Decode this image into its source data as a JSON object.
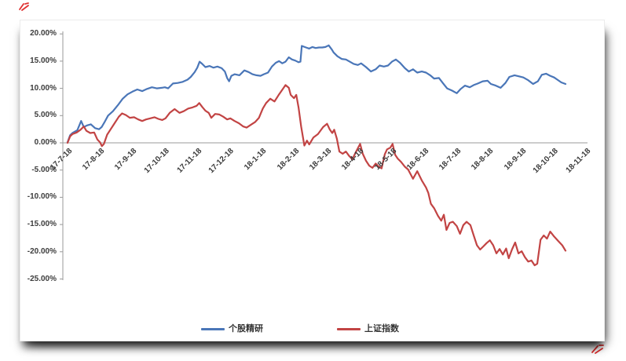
{
  "chart_data": {
    "type": "line",
    "title": "",
    "x_unit": "months since 17-7-18 (date format yy-m-dd)",
    "y_unit": "cumulative return %",
    "ylim": [
      -25,
      20
    ],
    "grid": false,
    "legend_position": "bottom",
    "x_axis": {
      "ticks": [
        "17-7-18",
        "17-8-18",
        "17-9-18",
        "17-10-18",
        "17-11-18",
        "17-12-18",
        "18-1-18",
        "18-2-18",
        "18-3-18",
        "18-4-18",
        "18-5-18",
        "18-6-18",
        "18-7-18",
        "18-8-18",
        "18-9-18",
        "18-10-18",
        "18-11-18"
      ],
      "labels_rotated": true
    },
    "y_axis": {
      "ticks": [
        "20.00%",
        "15.00%",
        "10.00%",
        "5.00%",
        "0.00%",
        "-5.00%",
        "-10.00%",
        "-15.00%",
        "-20.00%",
        "-25.00%"
      ],
      "max": 20,
      "min": -25,
      "step": 5
    },
    "legend": [
      {
        "label": "个股精研",
        "color": "#4a76b8"
      },
      {
        "label": "上证指数",
        "color": "#c24444"
      }
    ],
    "axis_color": "#9a9a9a",
    "series": [
      {
        "name": "个股精研",
        "color": "#4a76b8",
        "points": [
          [
            0,
            0.1
          ],
          [
            0.08,
            1.4
          ],
          [
            0.15,
            1.8
          ],
          [
            0.3,
            2.3
          ],
          [
            0.42,
            4
          ],
          [
            0.5,
            2.9
          ],
          [
            0.6,
            3.2
          ],
          [
            0.72,
            3.4
          ],
          [
            0.85,
            2.7
          ],
          [
            0.97,
            2.5
          ],
          [
            1.05,
            2.9
          ],
          [
            1.15,
            3.9
          ],
          [
            1.25,
            5
          ],
          [
            1.4,
            5.8
          ],
          [
            1.55,
            6.9
          ],
          [
            1.7,
            8.1
          ],
          [
            1.85,
            8.9
          ],
          [
            2,
            9.4
          ],
          [
            2.15,
            9.8
          ],
          [
            2.3,
            9.5
          ],
          [
            2.45,
            9.9
          ],
          [
            2.6,
            10.2
          ],
          [
            2.75,
            10
          ],
          [
            2.9,
            10.1
          ],
          [
            3,
            10.2
          ],
          [
            3.1,
            10
          ],
          [
            3.25,
            10.9
          ],
          [
            3.4,
            11
          ],
          [
            3.55,
            11.2
          ],
          [
            3.7,
            11.6
          ],
          [
            3.8,
            12.1
          ],
          [
            3.92,
            13
          ],
          [
            4,
            13.8
          ],
          [
            4.07,
            14.9
          ],
          [
            4.15,
            14.5
          ],
          [
            4.25,
            13.9
          ],
          [
            4.38,
            14.1
          ],
          [
            4.5,
            13.8
          ],
          [
            4.62,
            14
          ],
          [
            4.75,
            13.7
          ],
          [
            4.85,
            13.1
          ],
          [
            4.92,
            11.9
          ],
          [
            4.98,
            11.3
          ],
          [
            5.05,
            12.3
          ],
          [
            5.15,
            12.6
          ],
          [
            5.3,
            12.4
          ],
          [
            5.45,
            13.3
          ],
          [
            5.58,
            13
          ],
          [
            5.7,
            12.6
          ],
          [
            5.82,
            12.4
          ],
          [
            5.95,
            12.3
          ],
          [
            6.05,
            12.6
          ],
          [
            6.18,
            12.9
          ],
          [
            6.3,
            14
          ],
          [
            6.42,
            14.7
          ],
          [
            6.52,
            15
          ],
          [
            6.62,
            14.6
          ],
          [
            6.72,
            14.9
          ],
          [
            6.82,
            15.7
          ],
          [
            6.92,
            15.3
          ],
          [
            7.02,
            15.1
          ],
          [
            7.12,
            14.8
          ],
          [
            7.18,
            14.9
          ],
          [
            7.22,
            17.8
          ],
          [
            7.35,
            17.5
          ],
          [
            7.45,
            17.3
          ],
          [
            7.55,
            17.6
          ],
          [
            7.65,
            17.4
          ],
          [
            7.75,
            17.5
          ],
          [
            7.85,
            17.5
          ],
          [
            7.95,
            17.6
          ],
          [
            8.05,
            17.9
          ],
          [
            8.15,
            17.1
          ],
          [
            8.2,
            16.6
          ],
          [
            8.32,
            15.9
          ],
          [
            8.45,
            15.4
          ],
          [
            8.58,
            15.3
          ],
          [
            8.7,
            14.9
          ],
          [
            8.82,
            14.5
          ],
          [
            8.95,
            14.3
          ],
          [
            9.05,
            14.6
          ],
          [
            9.2,
            13.9
          ],
          [
            9.35,
            13.1
          ],
          [
            9.5,
            13.5
          ],
          [
            9.62,
            14.2
          ],
          [
            9.75,
            14
          ],
          [
            9.88,
            14.2
          ],
          [
            10,
            14.9
          ],
          [
            10.12,
            15.3
          ],
          [
            10.25,
            14.7
          ],
          [
            10.4,
            13.7
          ],
          [
            10.52,
            13.1
          ],
          [
            10.65,
            13.5
          ],
          [
            10.78,
            12.9
          ],
          [
            10.92,
            13.1
          ],
          [
            11.05,
            12.9
          ],
          [
            11.18,
            12.4
          ],
          [
            11.3,
            11.8
          ],
          [
            11.45,
            11.9
          ],
          [
            11.58,
            10.9
          ],
          [
            11.7,
            10
          ],
          [
            11.85,
            9.6
          ],
          [
            12,
            9.1
          ],
          [
            12.12,
            9.9
          ],
          [
            12.25,
            10.5
          ],
          [
            12.4,
            10.2
          ],
          [
            12.52,
            10.6
          ],
          [
            12.65,
            10.9
          ],
          [
            12.8,
            11.3
          ],
          [
            12.95,
            11.4
          ],
          [
            13.05,
            10.8
          ],
          [
            13.2,
            10.5
          ],
          [
            13.35,
            10.1
          ],
          [
            13.5,
            11
          ],
          [
            13.62,
            12.1
          ],
          [
            13.78,
            12.4
          ],
          [
            13.92,
            12.2
          ],
          [
            14.05,
            12
          ],
          [
            14.2,
            11.5
          ],
          [
            14.35,
            10.8
          ],
          [
            14.5,
            11.3
          ],
          [
            14.62,
            12.5
          ],
          [
            14.75,
            12.7
          ],
          [
            14.88,
            12.3
          ],
          [
            15,
            12
          ],
          [
            15.1,
            11.6
          ],
          [
            15.22,
            11.1
          ],
          [
            15.35,
            10.8
          ]
        ]
      },
      {
        "name": "上证指数",
        "color": "#c24444",
        "points": [
          [
            0,
            0
          ],
          [
            0.08,
            1.2
          ],
          [
            0.15,
            1.6
          ],
          [
            0.28,
            1.9
          ],
          [
            0.4,
            2.4
          ],
          [
            0.5,
            3
          ],
          [
            0.58,
            2.2
          ],
          [
            0.7,
            1.8
          ],
          [
            0.82,
            1.9
          ],
          [
            0.92,
            0.6
          ],
          [
            1,
            0.1
          ],
          [
            1.06,
            -0.6
          ],
          [
            1.12,
            -0.2
          ],
          [
            1.22,
            1.5
          ],
          [
            1.32,
            2.4
          ],
          [
            1.45,
            3.6
          ],
          [
            1.58,
            4.8
          ],
          [
            1.68,
            5.4
          ],
          [
            1.8,
            5.1
          ],
          [
            1.92,
            4.6
          ],
          [
            2.05,
            4.7
          ],
          [
            2.18,
            4.3
          ],
          [
            2.3,
            4
          ],
          [
            2.42,
            4.3
          ],
          [
            2.55,
            4.5
          ],
          [
            2.68,
            4.7
          ],
          [
            2.8,
            4.4
          ],
          [
            2.92,
            4.2
          ],
          [
            3.02,
            4.5
          ],
          [
            3.15,
            5.5
          ],
          [
            3.3,
            6.2
          ],
          [
            3.45,
            5.5
          ],
          [
            3.58,
            5.8
          ],
          [
            3.72,
            6.3
          ],
          [
            3.85,
            6.5
          ],
          [
            3.98,
            6.8
          ],
          [
            4.06,
            7.3
          ],
          [
            4.15,
            6.6
          ],
          [
            4.25,
            5.9
          ],
          [
            4.35,
            5.5
          ],
          [
            4.43,
            4.6
          ],
          [
            4.55,
            5.3
          ],
          [
            4.68,
            5.2
          ],
          [
            4.8,
            4.8
          ],
          [
            4.92,
            4.3
          ],
          [
            5.02,
            4.5
          ],
          [
            5.15,
            4
          ],
          [
            5.28,
            3.6
          ],
          [
            5.42,
            3
          ],
          [
            5.52,
            2.8
          ],
          [
            5.65,
            3.3
          ],
          [
            5.78,
            3.8
          ],
          [
            5.9,
            4.6
          ],
          [
            6.02,
            6.3
          ],
          [
            6.12,
            7.3
          ],
          [
            6.25,
            8.1
          ],
          [
            6.38,
            7.6
          ],
          [
            6.52,
            8.9
          ],
          [
            6.65,
            10
          ],
          [
            6.72,
            10.6
          ],
          [
            6.82,
            10.1
          ],
          [
            6.88,
            8.8
          ],
          [
            6.98,
            8.2
          ],
          [
            7.05,
            8.8
          ],
          [
            7.12,
            6.5
          ],
          [
            7.2,
            3
          ],
          [
            7.3,
            -0.5
          ],
          [
            7.38,
            0.4
          ],
          [
            7.45,
            -0.3
          ],
          [
            7.58,
            1
          ],
          [
            7.72,
            1.6
          ],
          [
            7.88,
            2.9
          ],
          [
            8,
            3.5
          ],
          [
            8.08,
            2.5
          ],
          [
            8.16,
            1.8
          ],
          [
            8.22,
            2.4
          ],
          [
            8.3,
            0.8
          ],
          [
            8.38,
            -1.6
          ],
          [
            8.48,
            -2
          ],
          [
            8.58,
            -1.6
          ],
          [
            8.68,
            -2.4
          ],
          [
            8.78,
            -3
          ],
          [
            8.88,
            -1.8
          ],
          [
            8.95,
            -1
          ],
          [
            9.02,
            -0.2
          ],
          [
            9.1,
            -2
          ],
          [
            9.2,
            -3.3
          ],
          [
            9.3,
            -4.2
          ],
          [
            9.4,
            -4.6
          ],
          [
            9.5,
            -3.8
          ],
          [
            9.6,
            -4.4
          ],
          [
            9.68,
            -4.7
          ],
          [
            9.78,
            -2.1
          ],
          [
            9.85,
            -1.2
          ],
          [
            9.95,
            -0.9
          ],
          [
            10.02,
            -0.2
          ],
          [
            10.1,
            -2.2
          ],
          [
            10.18,
            -2.9
          ],
          [
            10.28,
            -3.5
          ],
          [
            10.4,
            -4.4
          ],
          [
            10.5,
            -4.9
          ],
          [
            10.65,
            -6.6
          ],
          [
            10.78,
            -5.2
          ],
          [
            10.92,
            -6.9
          ],
          [
            11.05,
            -8.2
          ],
          [
            11.12,
            -9.2
          ],
          [
            11.2,
            -11.2
          ],
          [
            11.3,
            -12
          ],
          [
            11.42,
            -13.4
          ],
          [
            11.52,
            -14.3
          ],
          [
            11.6,
            -13.2
          ],
          [
            11.68,
            -16
          ],
          [
            11.78,
            -14.7
          ],
          [
            11.88,
            -14.5
          ],
          [
            12,
            -15.3
          ],
          [
            12.1,
            -16.7
          ],
          [
            12.2,
            -15.1
          ],
          [
            12.3,
            -14.5
          ],
          [
            12.42,
            -15.1
          ],
          [
            12.52,
            -17
          ],
          [
            12.62,
            -18.8
          ],
          [
            12.72,
            -19.6
          ],
          [
            12.82,
            -19
          ],
          [
            12.92,
            -18.4
          ],
          [
            13.02,
            -17.9
          ],
          [
            13.12,
            -18.8
          ],
          [
            13.22,
            -20.3
          ],
          [
            13.32,
            -19.5
          ],
          [
            13.42,
            -20.5
          ],
          [
            13.52,
            -19.4
          ],
          [
            13.6,
            -21.2
          ],
          [
            13.7,
            -19.6
          ],
          [
            13.8,
            -18.3
          ],
          [
            13.9,
            -20.3
          ],
          [
            14,
            -19.9
          ],
          [
            14.1,
            -21
          ],
          [
            14.2,
            -21.8
          ],
          [
            14.3,
            -21.6
          ],
          [
            14.4,
            -22.5
          ],
          [
            14.48,
            -22.2
          ],
          [
            14.58,
            -17.8
          ],
          [
            14.68,
            -17
          ],
          [
            14.78,
            -17.6
          ],
          [
            14.88,
            -16.3
          ],
          [
            15,
            -17.2
          ],
          [
            15.12,
            -18
          ],
          [
            15.25,
            -18.8
          ],
          [
            15.35,
            -19.8
          ]
        ]
      }
    ]
  },
  "decorations": {
    "watermark_mark_color": "#e03030",
    "card_background": "#ffffff"
  }
}
